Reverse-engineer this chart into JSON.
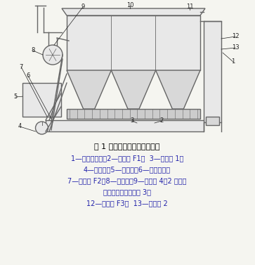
{
  "title": "图 1 回转烘干机烟气净化系统",
  "title_color": "#000000",
  "line1": "1—回转烘干机；2—热风阀 F1；  3—测温点 1；",
  "line2": "4—鼓风机；5—热风炉；6—热风管道；",
  "line3": "7—冷风阀 F2；8—引风机；9—测温点 4；2 一袋式",
  "line4": "除尘器；。一测温点 3；",
  "line5": "12—冷风阀 F3；  13—测温点 2",
  "text_color_blue": "#2222aa",
  "text_color_black": "#000000",
  "bg_color": "#f5f5f0"
}
